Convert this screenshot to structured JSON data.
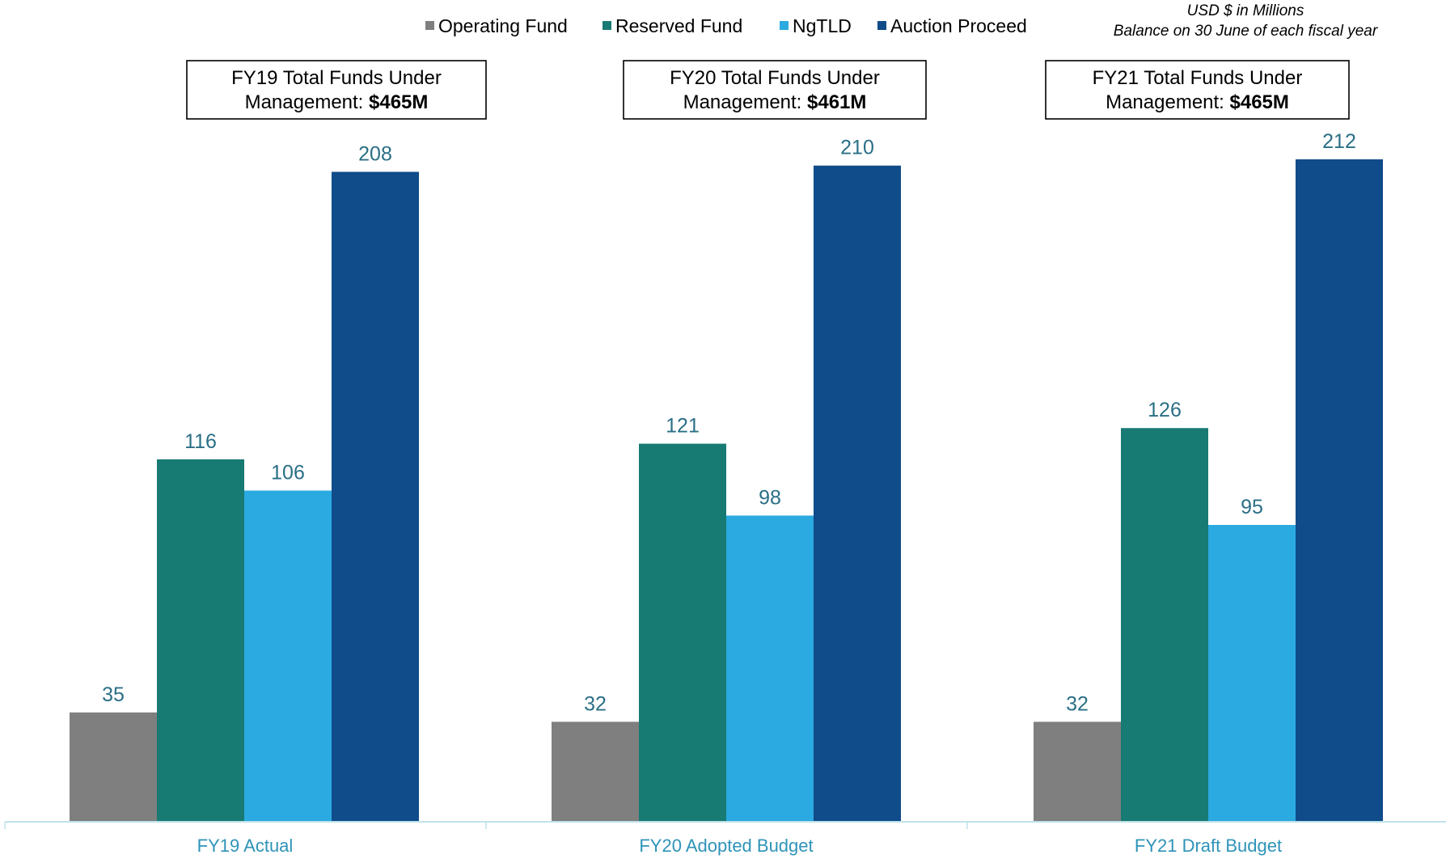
{
  "legend": [
    {
      "label": "Operating Fund",
      "color": "#7f7f7f"
    },
    {
      "label": "Reserved Fund",
      "color": "#177a73"
    },
    {
      "label": "NgTLD",
      "color": "#2ba9e1"
    },
    {
      "label": "Auction Proceed",
      "color": "#104c8a"
    }
  ],
  "units_note": {
    "line1": "USD $ in Millions",
    "line2": "Balance on 30 June of each fiscal year"
  },
  "summary_boxes": [
    {
      "line1": "FY19 Total Funds Under",
      "line2_prefix": "Management: ",
      "line2_value": "$465M"
    },
    {
      "line1": "FY20 Total Funds Under",
      "line2_prefix": "Management: ",
      "line2_value": "$461M"
    },
    {
      "line1": "FY21 Total Funds Under",
      "line2_prefix": "Management: ",
      "line2_value": "$465M"
    }
  ],
  "colors": {
    "axis_line": "#bfe3ea",
    "data_label": "#2a6f86",
    "category_label": "#2e93b8"
  },
  "chart_data": {
    "type": "bar",
    "categories": [
      "FY19 Actual",
      "FY20 Adopted Budget",
      "FY21 Draft Budget"
    ],
    "series": [
      {
        "name": "Operating Fund",
        "values": [
          35,
          32,
          32
        ],
        "color": "#7f7f7f"
      },
      {
        "name": "Reserved Fund",
        "values": [
          116,
          121,
          126
        ],
        "color": "#177a73"
      },
      {
        "name": "NgTLD",
        "values": [
          106,
          98,
          95
        ],
        "color": "#2ba9e1"
      },
      {
        "name": "Auction Proceed",
        "values": [
          208,
          210,
          212
        ],
        "color": "#104c8a"
      }
    ],
    "ylim": [
      0,
      212
    ],
    "grid": false,
    "legend_position": "top",
    "data_labels": true
  }
}
